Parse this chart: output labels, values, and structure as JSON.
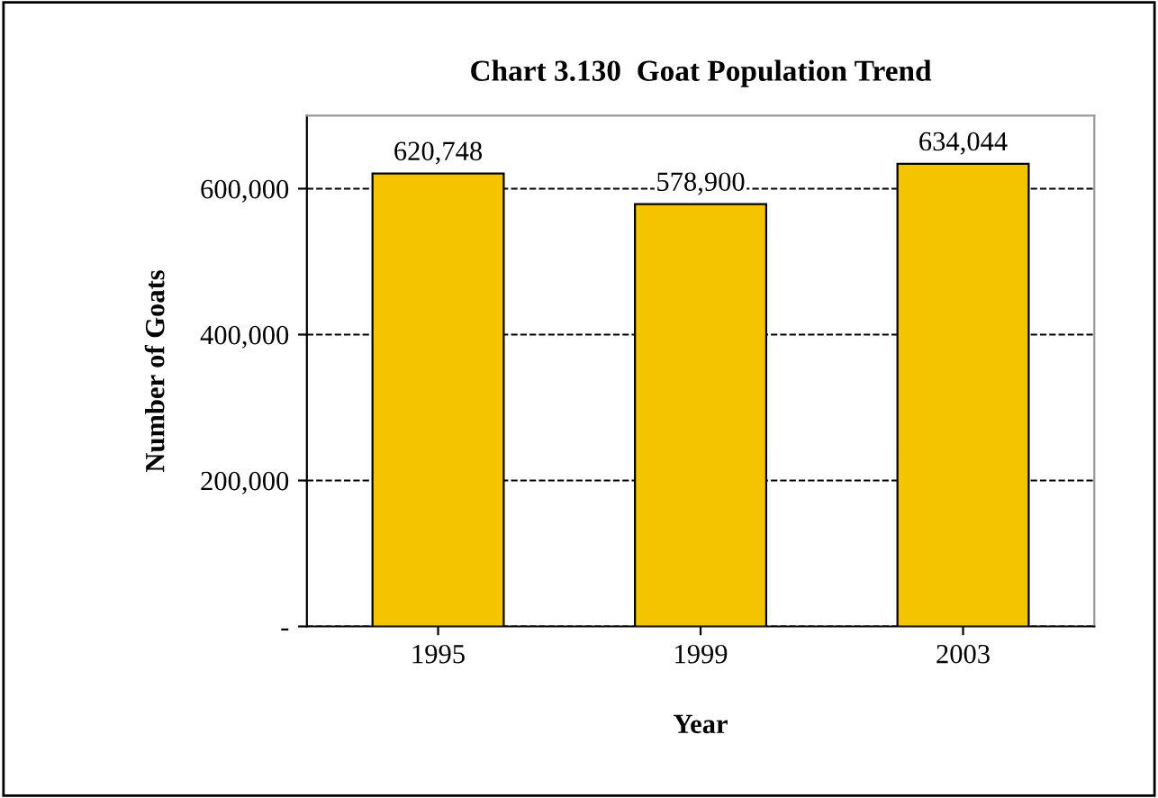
{
  "chart_data": {
    "type": "bar",
    "title": "Chart 3.130  Goat Population Trend",
    "xlabel": "Year",
    "ylabel": "Number of Goats",
    "categories": [
      "1995",
      "1999",
      "2003"
    ],
    "series": [
      {
        "color": "#f5c400",
        "values": [
          620748,
          578900,
          634044
        ],
        "value_labels": [
          "620,748",
          "578,900",
          "634,044"
        ]
      }
    ],
    "ylim": [
      0,
      700000
    ],
    "yticks": [
      {
        "value": 0,
        "label": "-"
      },
      {
        "value": 200000,
        "label": "200,000"
      },
      {
        "value": 400000,
        "label": "400,000"
      },
      {
        "value": 600000,
        "label": "600,000"
      }
    ],
    "grid": "y",
    "line_style": "dashed"
  }
}
